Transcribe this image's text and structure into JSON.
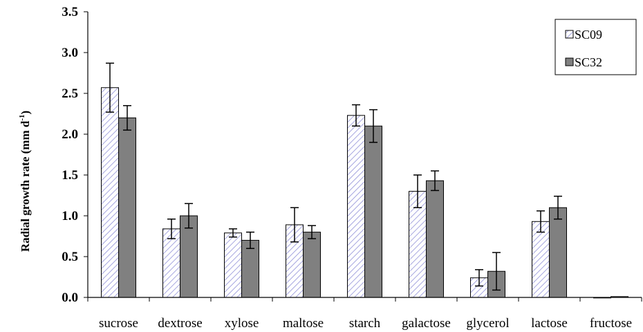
{
  "chart_data": {
    "type": "bar",
    "title": "",
    "xlabel": "",
    "ylabel": "Radial growth rate (mm d",
    "ylabel_sup": "-1",
    "ylabel_end": ")",
    "ylim": [
      0,
      3.5
    ],
    "yticks": [
      "0.0",
      "0.5",
      "1.0",
      "1.5",
      "2.0",
      "2.5",
      "3.0",
      "3.5"
    ],
    "grid": false,
    "legend_position": "top-right",
    "categories": [
      "sucrose",
      "dextrose",
      "xylose",
      "maltose",
      "starch",
      "galactose",
      "glycerol",
      "lactose",
      "fructose"
    ],
    "series": [
      {
        "name": "SC09",
        "pattern": "diagonal-hatch",
        "color": "#9999dd",
        "values": [
          2.57,
          0.84,
          0.79,
          0.89,
          2.23,
          1.3,
          0.24,
          0.93,
          0.0
        ],
        "errors": [
          0.3,
          0.12,
          0.05,
          0.21,
          0.13,
          0.2,
          0.1,
          0.13,
          0.0
        ]
      },
      {
        "name": "SC32",
        "pattern": "solid",
        "color": "#808080",
        "values": [
          2.2,
          1.0,
          0.7,
          0.8,
          2.1,
          1.43,
          0.32,
          1.1,
          0.01
        ],
        "errors": [
          0.15,
          0.15,
          0.1,
          0.08,
          0.2,
          0.12,
          0.23,
          0.14,
          0.0
        ]
      }
    ]
  }
}
